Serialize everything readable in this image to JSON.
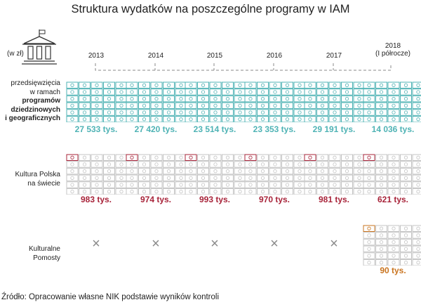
{
  "title": "Struktura wydatków na poszczególne programy w IAM",
  "unit_label": "(w zł)",
  "source": "Źródło: Opracowanie własne NIK podstawie wyników kontroli",
  "years": [
    "2013",
    "2014",
    "2015",
    "2016",
    "2017",
    "2018\n(I półrocze)"
  ],
  "rows": [
    {
      "label_plain": "przedsięwzięcia\nw ramach",
      "label_bold": "programów\ndziedzinowych\ni geograficznych"
    },
    {
      "label_plain": "Kultura Polska\nna świecie",
      "label_bold": ""
    },
    {
      "label_plain": "Kulturalne\nPomosty",
      "label_bold": ""
    }
  ],
  "colors": {
    "teal": "#4fb3b5",
    "red": "#a8243a",
    "orange": "#c9741f",
    "grey": "#c4c4c4",
    "cross": "#8a8a8a"
  },
  "icons": [
    "building-icon",
    "cross-icon"
  ],
  "chart_data": {
    "type": "table",
    "title": "Struktura wydatków na poszczególne programy w IAM",
    "categories": [
      "2013",
      "2014",
      "2015",
      "2016",
      "2017",
      "2018 (I półrocze)"
    ],
    "series": [
      {
        "name": "przedsięwzięcia w ramach programów dziedzinowych i geograficznych",
        "values": [
          27533,
          27420,
          23514,
          23353,
          29191,
          14036
        ],
        "labels": [
          "27 533 tys.",
          "27 420 tys.",
          "23 514 tys.",
          "23 353 tys.",
          "29 191 tys.",
          "14 036 tys."
        ]
      },
      {
        "name": "Kultura Polska na świecie",
        "values": [
          983,
          974,
          993,
          970,
          981,
          621
        ],
        "labels": [
          "983 tys.",
          "974 tys.",
          "993 tys.",
          "970 tys.",
          "981 tys.",
          "621 tys."
        ]
      },
      {
        "name": "Kulturalne Pomosty",
        "values": [
          null,
          null,
          null,
          null,
          null,
          90
        ],
        "labels": [
          "",
          "",
          "",
          "",
          "",
          "90 tys."
        ]
      }
    ]
  }
}
